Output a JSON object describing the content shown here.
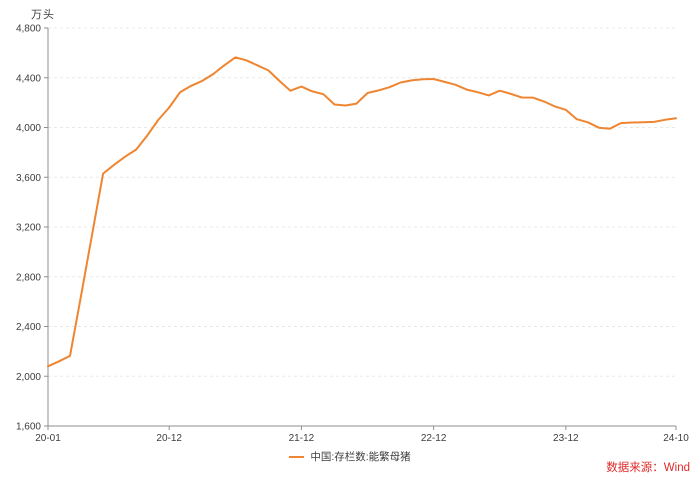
{
  "colors": {
    "line": "#ef8530",
    "grid": "#e8e8e8",
    "axis": "#8f8f8f",
    "tick_text": "#3d3d3d",
    "legend_text": "#3d3d3d",
    "source_red": "#e02a2a",
    "background": "#ffffff"
  },
  "chart_data": {
    "type": "line",
    "title": "",
    "unit_label": "万头",
    "source_note": "数据来源：Wind",
    "grid": "horizontal-dashed",
    "legend_position": "bottom-center",
    "ylim": [
      1600,
      4800
    ],
    "ytick_step": 400,
    "y_ticks": [
      {
        "value": 1600,
        "label": "1,600"
      },
      {
        "value": 2000,
        "label": "2,000"
      },
      {
        "value": 2400,
        "label": "2,400"
      },
      {
        "value": 2800,
        "label": "2,800"
      },
      {
        "value": 3200,
        "label": "3,200"
      },
      {
        "value": 3600,
        "label": "3,600"
      },
      {
        "value": 4000,
        "label": "4,000"
      },
      {
        "value": 4400,
        "label": "4,400"
      },
      {
        "value": 4800,
        "label": "4,800"
      }
    ],
    "x": [
      "20-01",
      "20-02",
      "20-03",
      "20-04",
      "20-05",
      "20-06",
      "20-07",
      "20-08",
      "20-09",
      "20-10",
      "20-11",
      "20-12",
      "21-01",
      "21-02",
      "21-03",
      "21-04",
      "21-05",
      "21-06",
      "21-07",
      "21-08",
      "21-09",
      "21-10",
      "21-11",
      "21-12",
      "22-01",
      "22-02",
      "22-03",
      "22-04",
      "22-05",
      "22-06",
      "22-07",
      "22-08",
      "22-09",
      "22-10",
      "22-11",
      "22-12",
      "23-01",
      "23-02",
      "23-03",
      "23-04",
      "23-05",
      "23-06",
      "23-07",
      "23-08",
      "23-09",
      "23-10",
      "23-11",
      "23-12",
      "24-01",
      "24-02",
      "24-03",
      "24-04",
      "24-05",
      "24-06",
      "24-07",
      "24-08",
      "24-09",
      "24-10"
    ],
    "x_ticks": [
      {
        "index": 0,
        "label": "20-01"
      },
      {
        "index": 11,
        "label": "20-12"
      },
      {
        "index": 23,
        "label": "21-12"
      },
      {
        "index": 35,
        "label": "22-12"
      },
      {
        "index": 47,
        "label": "23-12"
      },
      {
        "index": 57,
        "label": "24-10"
      }
    ],
    "legend": [
      {
        "label": "中国:存栏数:能繁母猪"
      }
    ],
    "series": [
      {
        "name": "中国:存栏数:能繁母猪",
        "values": [
          2080,
          2120,
          2164,
          2650,
          3140,
          3629,
          3700,
          3765,
          3822,
          3935,
          4060,
          4161,
          4285,
          4335,
          4375,
          4430,
          4500,
          4564,
          4540,
          4500,
          4459,
          4375,
          4296,
          4329,
          4290,
          4268,
          4185,
          4177,
          4192,
          4277,
          4298,
          4324,
          4362,
          4379,
          4388,
          4390,
          4367,
          4343,
          4305,
          4284,
          4258,
          4296,
          4271,
          4241,
          4240,
          4210,
          4170,
          4142,
          4067,
          4042,
          3998,
          3990,
          4035,
          4040,
          4042,
          4045,
          4062,
          4075
        ]
      }
    ]
  }
}
